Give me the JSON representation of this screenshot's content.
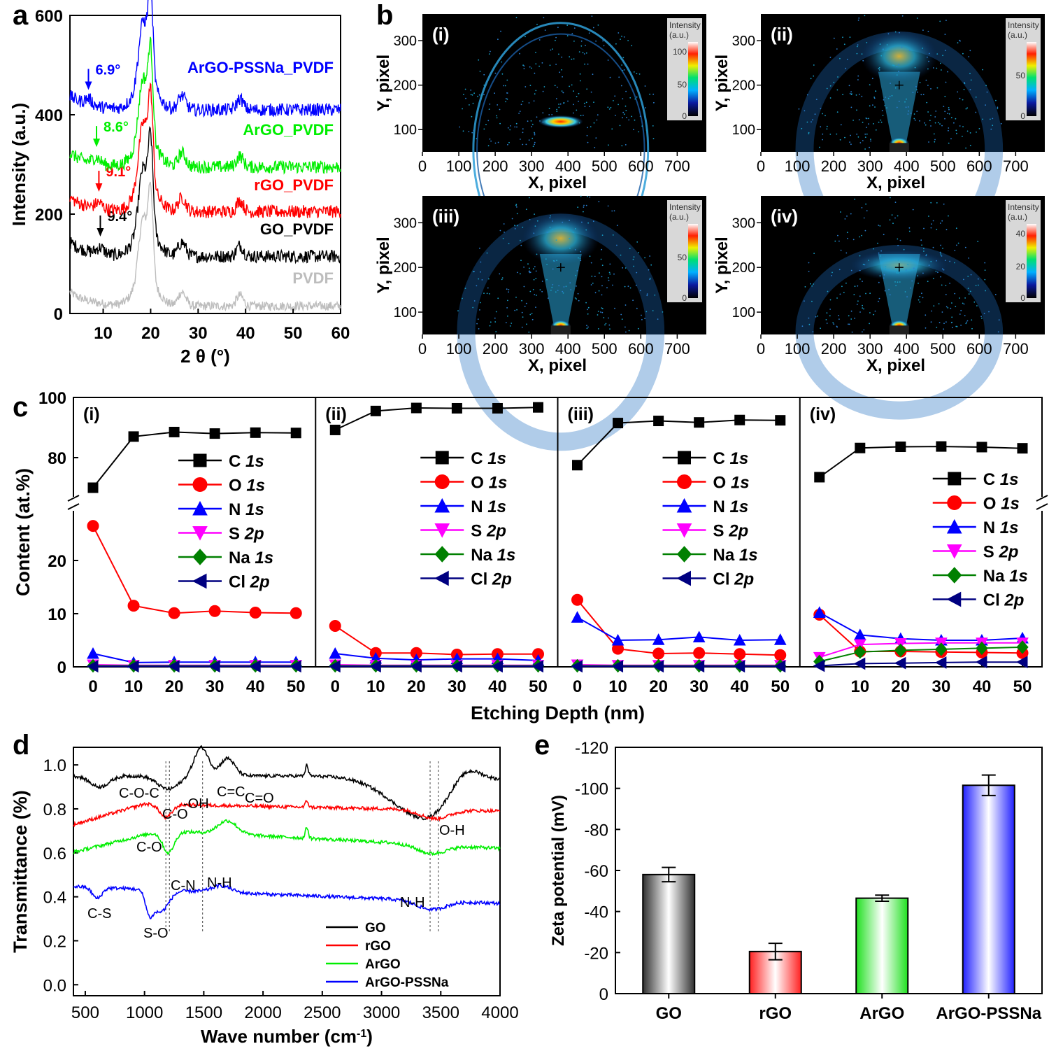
{
  "chart_data": [
    {
      "panel": "a",
      "type": "line",
      "xlabel": "2 θ (°)",
      "ylabel": "Intensity (a.u.)",
      "xlim": [
        3,
        60
      ],
      "ylim": [
        0,
        600
      ],
      "xticks": [
        10,
        20,
        30,
        40,
        50,
        60
      ],
      "yticks": [
        0,
        200,
        400,
        600
      ],
      "peaks_x": [
        18.4,
        20.0,
        26.6,
        38.8
      ],
      "series": [
        {
          "name": "PVDF",
          "color": "#bdbdbd",
          "baseline": 15,
          "annotation": ""
        },
        {
          "name": "GO_PVDF",
          "color": "#000000",
          "baseline": 115,
          "annotation": "9.4°",
          "annotation_x": 9.4
        },
        {
          "name": "rGO_PVDF",
          "color": "#ff0000",
          "baseline": 205,
          "annotation": "9.1°",
          "annotation_x": 9.1
        },
        {
          "name": "ArGO_PVDF",
          "color": "#00ee00",
          "baseline": 295,
          "annotation": "8.6°",
          "annotation_x": 8.6
        },
        {
          "name": "ArGO-PSSNa_PVDF",
          "color": "#0000ff",
          "baseline": 410,
          "annotation": "6.9°",
          "annotation_x": 6.9
        }
      ]
    },
    {
      "panel": "b",
      "type": "heatmap",
      "xlabel": "X, pixel",
      "ylabel": "Y, pixel",
      "xticks": [
        0,
        100,
        200,
        300,
        400,
        500,
        600,
        700
      ],
      "yticks": [
        100,
        200,
        300
      ],
      "colorbar_title": "Intensity",
      "colorbar_unit": "(a.u.)",
      "subpanels": [
        {
          "label": "(i)",
          "colorbar_ticks": [
            "100",
            "50",
            "0"
          ]
        },
        {
          "label": "(ii)",
          "colorbar_ticks": [
            "50",
            "0"
          ]
        },
        {
          "label": "(iii)",
          "colorbar_ticks": [
            "50",
            "0"
          ]
        },
        {
          "label": "(iv)",
          "colorbar_ticks": [
            "40",
            "20",
            "0"
          ]
        }
      ]
    },
    {
      "panel": "c",
      "type": "line",
      "xlabel": "Etching Depth (nm)",
      "ylabel": "Content (at.%)",
      "x": [
        0,
        10,
        20,
        30,
        40,
        50
      ],
      "yticks_upper": [
        80,
        100
      ],
      "yticks_lower": [
        0,
        10,
        20
      ],
      "legend": [
        {
          "el": "C",
          "sub": "1s",
          "color": "#000000",
          "marker": "square"
        },
        {
          "el": "O",
          "sub": "1s",
          "color": "#ff0000",
          "marker": "circle"
        },
        {
          "el": "N",
          "sub": "1s",
          "color": "#0000ff",
          "marker": "tri-up"
        },
        {
          "el": "S",
          "sub": "2p",
          "color": "#ff00ff",
          "marker": "tri-down"
        },
        {
          "el": "Na",
          "sub": "1s",
          "color": "#008000",
          "marker": "diamond"
        },
        {
          "el": "Cl",
          "sub": "2p",
          "color": "#000080",
          "marker": "tri-left"
        }
      ],
      "subpanels": [
        {
          "label": "(i)",
          "C": [
            70,
            87,
            88.5,
            88,
            88.3,
            88.2
          ],
          "O": [
            26.5,
            11.5,
            10.1,
            10.5,
            10.2,
            10.1
          ],
          "N": [
            2.5,
            0.8,
            0.9,
            0.9,
            0.9,
            0.9
          ],
          "S": [
            0.4,
            0.3,
            0.3,
            0.3,
            0.3,
            0.3
          ],
          "Na": [
            0.2,
            0.2,
            0.2,
            0.2,
            0.2,
            0.2
          ],
          "Cl": [
            0.1,
            0.1,
            0.1,
            0.1,
            0.1,
            0.1
          ]
        },
        {
          "label": "(ii)",
          "C": [
            89.2,
            95.5,
            96.5,
            96.4,
            96.4,
            96.7
          ],
          "O": [
            7.7,
            2.6,
            2.6,
            2.3,
            2.4,
            2.4
          ],
          "N": [
            2.5,
            1.6,
            1.3,
            1.5,
            1.5,
            1.2
          ],
          "S": [
            0.4,
            0.3,
            0.3,
            0.3,
            0.3,
            0.3
          ],
          "Na": [
            0.2,
            0.2,
            0.2,
            0.2,
            0.2,
            0.2
          ],
          "Cl": [
            0.1,
            0.1,
            0.1,
            0.1,
            0.1,
            0.1
          ]
        },
        {
          "label": "(iii)",
          "C": [
            77.5,
            91.5,
            92.2,
            91.7,
            92.5,
            92.4
          ],
          "O": [
            12.6,
            3.4,
            2.5,
            2.6,
            2.4,
            2.2
          ],
          "N": [
            9.3,
            5.0,
            5.1,
            5.6,
            5.0,
            5.1
          ],
          "S": [
            0.4,
            0.3,
            0.3,
            0.3,
            0.3,
            0.3
          ],
          "Na": [
            0.2,
            0.2,
            0.2,
            0.2,
            0.2,
            0.2
          ],
          "Cl": [
            0.1,
            0.1,
            0.1,
            0.1,
            0.1,
            0.1
          ]
        },
        {
          "label": "(iv)",
          "C": [
            73.5,
            83.2,
            83.6,
            83.7,
            83.5,
            83.1
          ],
          "O": [
            9.8,
            2.9,
            2.9,
            2.8,
            2.7,
            2.6
          ],
          "N": [
            10.2,
            6.0,
            5.3,
            5.0,
            5.0,
            5.4
          ],
          "S": [
            1.8,
            4.2,
            4.4,
            4.5,
            4.5,
            4.5
          ],
          "Na": [
            1.0,
            2.8,
            3.1,
            3.3,
            3.5,
            3.7
          ],
          "Cl": [
            0.2,
            0.6,
            0.7,
            0.8,
            0.9,
            0.9
          ]
        }
      ]
    },
    {
      "panel": "d",
      "type": "line",
      "xlabel": "Wave number (cm",
      "xlabel_sup": "-1",
      "xlabel_end": ")",
      "ylabel": "Transmittance (%)",
      "xlim": [
        400,
        4000
      ],
      "ylim": [
        -0.05,
        1.08
      ],
      "xticks": [
        500,
        1000,
        1500,
        2000,
        2500,
        3000,
        3500,
        4000
      ],
      "yticks": [
        "0.0",
        "0.2",
        "0.4",
        "0.6",
        "0.8",
        "1.0"
      ],
      "series": [
        {
          "name": "GO",
          "color": "#000000"
        },
        {
          "name": "rGO",
          "color": "#ff0000"
        },
        {
          "name": "ArGO",
          "color": "#00ee00"
        },
        {
          "name": "ArGO-PSSNa",
          "color": "#0000ff"
        }
      ],
      "annotations": [
        "C-O-C",
        "C-O",
        "-OH",
        "C=C",
        "C=O",
        "O-H",
        "C-O",
        "C-N",
        "N-H",
        "N-H",
        "C-S",
        "S-O"
      ]
    },
    {
      "panel": "e",
      "type": "bar",
      "categories": [
        "GO",
        "rGO",
        "ArGO",
        "ArGO-PSSNa"
      ],
      "values": [
        -58,
        -20.5,
        -46.5,
        -101.5
      ],
      "errors": [
        3.5,
        4,
        1.5,
        5
      ],
      "colors": [
        "#444444",
        "#ff3333",
        "#33ee33",
        "#3333ff"
      ],
      "ylabel": "Zeta potential (mV)",
      "ylim": [
        0,
        -120
      ],
      "yticks": [
        "0",
        "-20",
        "-40",
        "-60",
        "-80",
        "-100",
        "-120"
      ]
    }
  ],
  "panel_letters": [
    "a",
    "b",
    "c",
    "d",
    "e"
  ]
}
